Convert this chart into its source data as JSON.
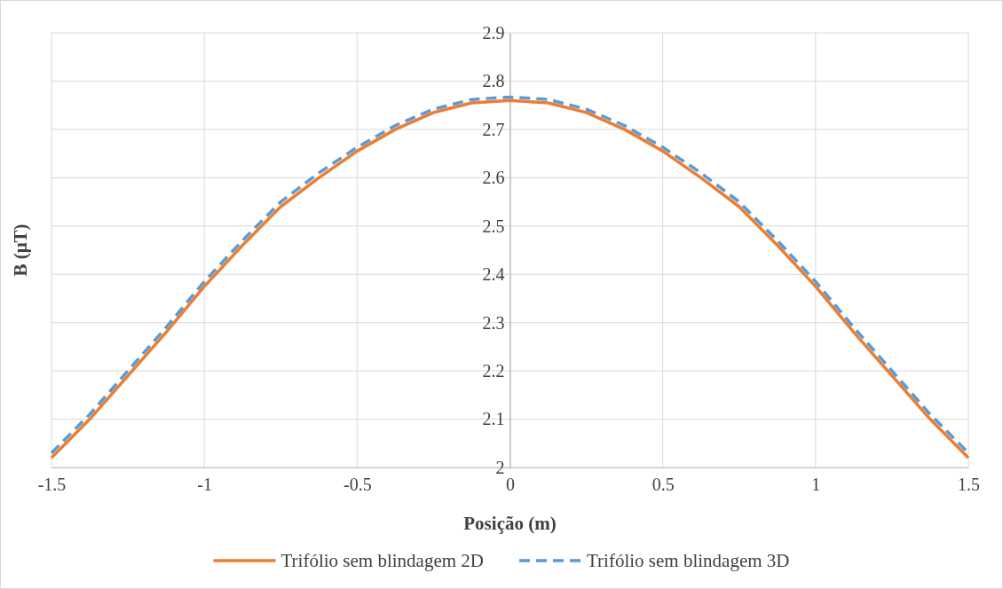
{
  "chart_data": {
    "type": "line",
    "xlabel": "Posição (m)",
    "ylabel": "B (μT)",
    "xlim": [
      -1.5,
      1.5
    ],
    "xticks": [
      -1.5,
      -1,
      -0.5,
      0,
      0.5,
      1,
      1.5
    ],
    "ylim": [
      2,
      2.9
    ],
    "yticks": [
      2,
      2.1,
      2.2,
      2.3,
      2.4,
      2.5,
      2.6,
      2.7,
      2.8,
      2.9
    ],
    "grid": true,
    "legend": "bottom",
    "marker": "none",
    "x": [
      -1.5,
      -1.375,
      -1.25,
      -1.125,
      -1,
      -0.875,
      -0.75,
      -0.625,
      -0.5,
      -0.375,
      -0.25,
      -0.125,
      0,
      0.125,
      0.25,
      0.375,
      0.5,
      0.625,
      0.75,
      0.875,
      1,
      1.125,
      1.25,
      1.375,
      1.5
    ],
    "series": [
      {
        "name": "Trifólio sem blindagem 2D",
        "color": "#ed7d31",
        "line_style": "solid",
        "values": [
          2.02,
          2.1,
          2.19,
          2.28,
          2.375,
          2.46,
          2.54,
          2.6,
          2.655,
          2.7,
          2.735,
          2.755,
          2.76,
          2.755,
          2.735,
          2.7,
          2.655,
          2.6,
          2.54,
          2.46,
          2.375,
          2.28,
          2.19,
          2.1,
          2.02
        ]
      },
      {
        "name": "Trifólio sem blindagem 3D",
        "color": "#5b9bd5",
        "line_style": "dashed",
        "values": [
          2.03,
          2.11,
          2.2,
          2.29,
          2.385,
          2.47,
          2.55,
          2.61,
          2.663,
          2.708,
          2.742,
          2.762,
          2.767,
          2.762,
          2.742,
          2.708,
          2.663,
          2.61,
          2.55,
          2.47,
          2.385,
          2.29,
          2.2,
          2.11,
          2.03
        ]
      }
    ]
  }
}
